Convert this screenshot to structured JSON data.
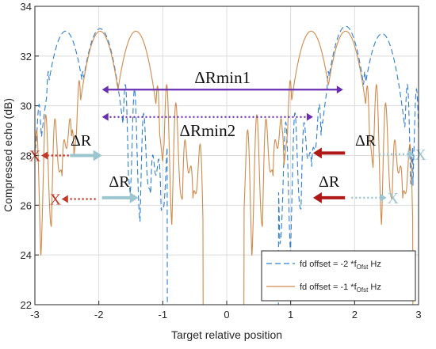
{
  "chart_data": {
    "type": "line",
    "xlabel": "Target relative position",
    "ylabel": "Compressed echo (dB)",
    "xlim": [
      -3,
      3
    ],
    "ylim": [
      22,
      34
    ],
    "x_ticks": [
      "-3",
      "-2",
      "-1",
      "0",
      "1",
      "2",
      "3"
    ],
    "y_ticks": [
      "22",
      "24",
      "26",
      "28",
      "30",
      "32",
      "34"
    ],
    "grid": true,
    "legend_position": "bottom-right",
    "series": [
      {
        "name": "fd offset = -2 *f",
        "legend_sub": "Ofst",
        "legend_suffix": " Hz",
        "style": "dashed",
        "color": "#2f7fd0",
        "peaks": [
          {
            "x": -2.52,
            "y": 33.0
          },
          {
            "x": -1.98,
            "y": 33.1
          },
          {
            "x": 1.86,
            "y": 33.2
          },
          {
            "x": 2.43,
            "y": 32.9
          }
        ]
      },
      {
        "name": "fd offset = -1 *f",
        "legend_sub": "Ofst",
        "legend_suffix": " Hz",
        "style": "solid",
        "color": "#d08a4a",
        "peaks": [
          {
            "x": -1.98,
            "y": 33.0
          },
          {
            "x": -1.42,
            "y": 33.0
          },
          {
            "x": 1.32,
            "y": 33.0
          },
          {
            "x": 1.86,
            "y": 33.0
          }
        ]
      }
    ],
    "annotations": [
      {
        "text": "ΔRmin1",
        "x_from": -1.95,
        "x_to": 1.82,
        "y": 30.65,
        "color": "#6a2fb0",
        "style": "solid",
        "heads": "both"
      },
      {
        "text": "ΔRmin2",
        "x_from": -1.95,
        "x_to": 1.35,
        "y": 29.55,
        "color": "#6a2fb0",
        "style": "dotted",
        "heads": "both"
      },
      {
        "text": "ΔR",
        "x_from": -2.45,
        "x_to": -1.95,
        "y": 28.0,
        "color": "#9cc6cf",
        "style": "solid",
        "heads": "end",
        "label_x": -2.28,
        "label_y": 28.4
      },
      {
        "text": "ΔR",
        "x_from": -1.95,
        "x_to": -1.38,
        "y": 26.3,
        "color": "#9cc6cf",
        "style": "solid",
        "heads": "end",
        "label_x": -1.68,
        "label_y": 26.75
      },
      {
        "text": "ΔR",
        "x_from": 1.85,
        "x_to": 1.35,
        "y": 28.1,
        "color": "#b01818",
        "style": "solid",
        "heads": "end",
        "label_x": 2.17,
        "label_y": 28.4
      },
      {
        "text": "ΔR",
        "x_from": 1.85,
        "x_to": 1.35,
        "y": 26.3,
        "color": "#b01818",
        "style": "solid",
        "heads": "end",
        "label_x": 1.6,
        "label_y": 26.75
      }
    ],
    "markers": [
      {
        "text": "X",
        "x": -3.0,
        "y": 28.0,
        "color": "#c0392b",
        "arrow_to": -2.47,
        "arrow_color": "#c0392b",
        "arrow_style": "dotted"
      },
      {
        "text": "X",
        "x": -2.68,
        "y": 26.25,
        "color": "#c0392b",
        "arrow_to": -2.05,
        "arrow_color": "#c0392b",
        "arrow_style": "dotted"
      },
      {
        "text": "X",
        "x": 3.03,
        "y": 28.05,
        "color": "#9cc6cf",
        "arrow_to": 2.38,
        "arrow_color": "#9cc6cf",
        "arrow_style": "dotted"
      },
      {
        "text": "X",
        "x": 2.6,
        "y": 26.3,
        "color": "#9cc6cf",
        "arrow_to": 1.95,
        "arrow_color": "#9cc6cf",
        "arrow_style": "dotted"
      }
    ]
  }
}
